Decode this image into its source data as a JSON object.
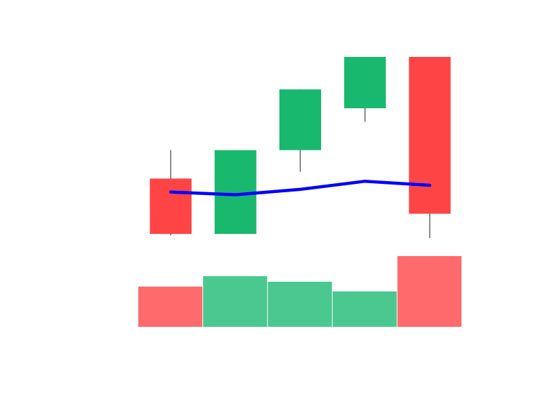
{
  "chart_data": {
    "type": "candlestick",
    "candles": [
      {
        "open": 104,
        "close": 63,
        "high": 125,
        "low": 62,
        "volume": 58
      },
      {
        "open": 63,
        "close": 125,
        "high": 125,
        "low": 63,
        "volume": 73
      },
      {
        "open": 125,
        "close": 170,
        "high": 170,
        "low": 109,
        "volume": 65
      },
      {
        "open": 156,
        "close": 194,
        "high": 194,
        "low": 146,
        "volume": 51
      },
      {
        "open": 194,
        "close": 78,
        "high": 194,
        "low": 60,
        "volume": 102
      }
    ],
    "moving_average": [
      94,
      92,
      96,
      102,
      99
    ],
    "price_range": [
      0,
      200
    ],
    "volume_range": [
      0,
      102
    ],
    "colors": {
      "up": "#19b86f",
      "down": "#ff4446",
      "up_volume": "#4ac88f",
      "down_volume": "#ff6a6c",
      "wick": "#666666",
      "moving_average": "#0000ff",
      "background": "#ffffff"
    }
  }
}
